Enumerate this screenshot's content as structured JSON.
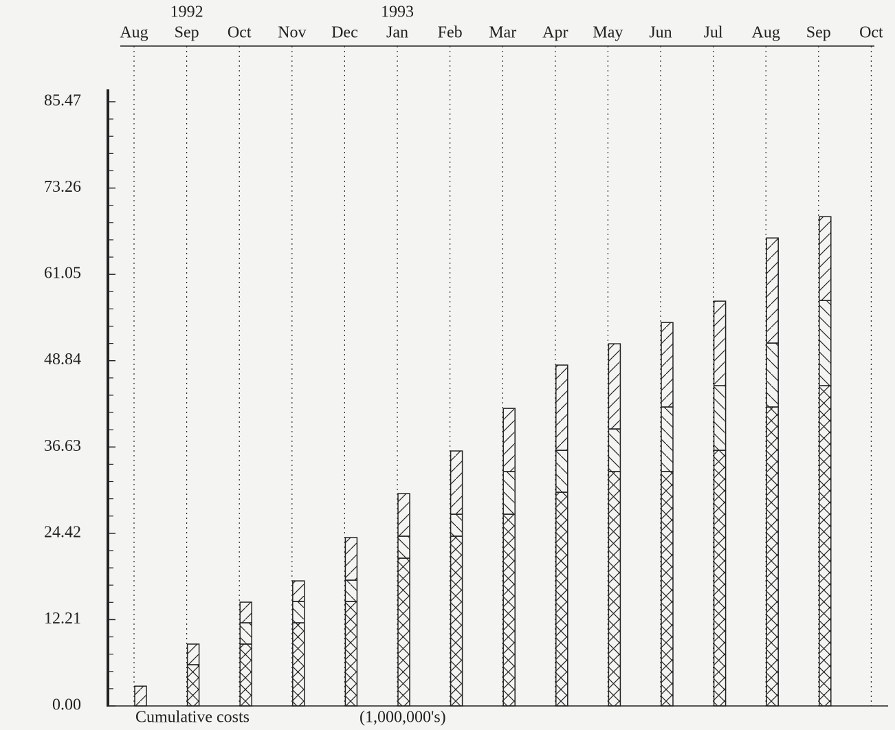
{
  "chart_data": {
    "type": "stacked_bar",
    "categories": [
      "Aug",
      "Sep",
      "Oct",
      "Nov",
      "Dec",
      "Jan",
      "Feb",
      "Mar",
      "Apr",
      "May",
      "Jun",
      "Jul",
      "Aug",
      "Sep",
      "Oct"
    ],
    "annotations": [
      {
        "text": "1992",
        "category": 1
      },
      {
        "text": "1993",
        "category": 5
      }
    ],
    "x_label": "Cumulative costs",
    "unit_label": "(1,000,000's)",
    "series": [
      {
        "hatch": "cross",
        "color": "#222222",
        "values": [
          0,
          5.83,
          8.75,
          11.76,
          14.78,
          20.9,
          24.01,
          27.12,
          30.23,
          33.15,
          33.15,
          36.16,
          42.29,
          45.3,
          null
        ]
      },
      {
        "hatch": "backslash",
        "color": "#222222",
        "values": [
          0,
          0,
          3.01,
          3.02,
          3.01,
          3.11,
          3.11,
          6.03,
          5.93,
          6.03,
          9.14,
          9.14,
          9.04,
          12.05,
          null
        ]
      },
      {
        "hatch": "slash",
        "color": "#222222",
        "values": [
          2.8,
          2.92,
          2.92,
          2.91,
          6.03,
          6.03,
          8.95,
          8.94,
          12.06,
          12.05,
          11.95,
          11.96,
          14.87,
          11.86,
          null
        ]
      }
    ],
    "ylim": [
      0,
      85.47
    ],
    "yticks": [
      {
        "value": 0,
        "label": "0.00"
      },
      12.21,
      24.42,
      36.63,
      48.84,
      61.05,
      73.26,
      85.47
    ],
    "minor_ticks": 4,
    "grid": true
  }
}
